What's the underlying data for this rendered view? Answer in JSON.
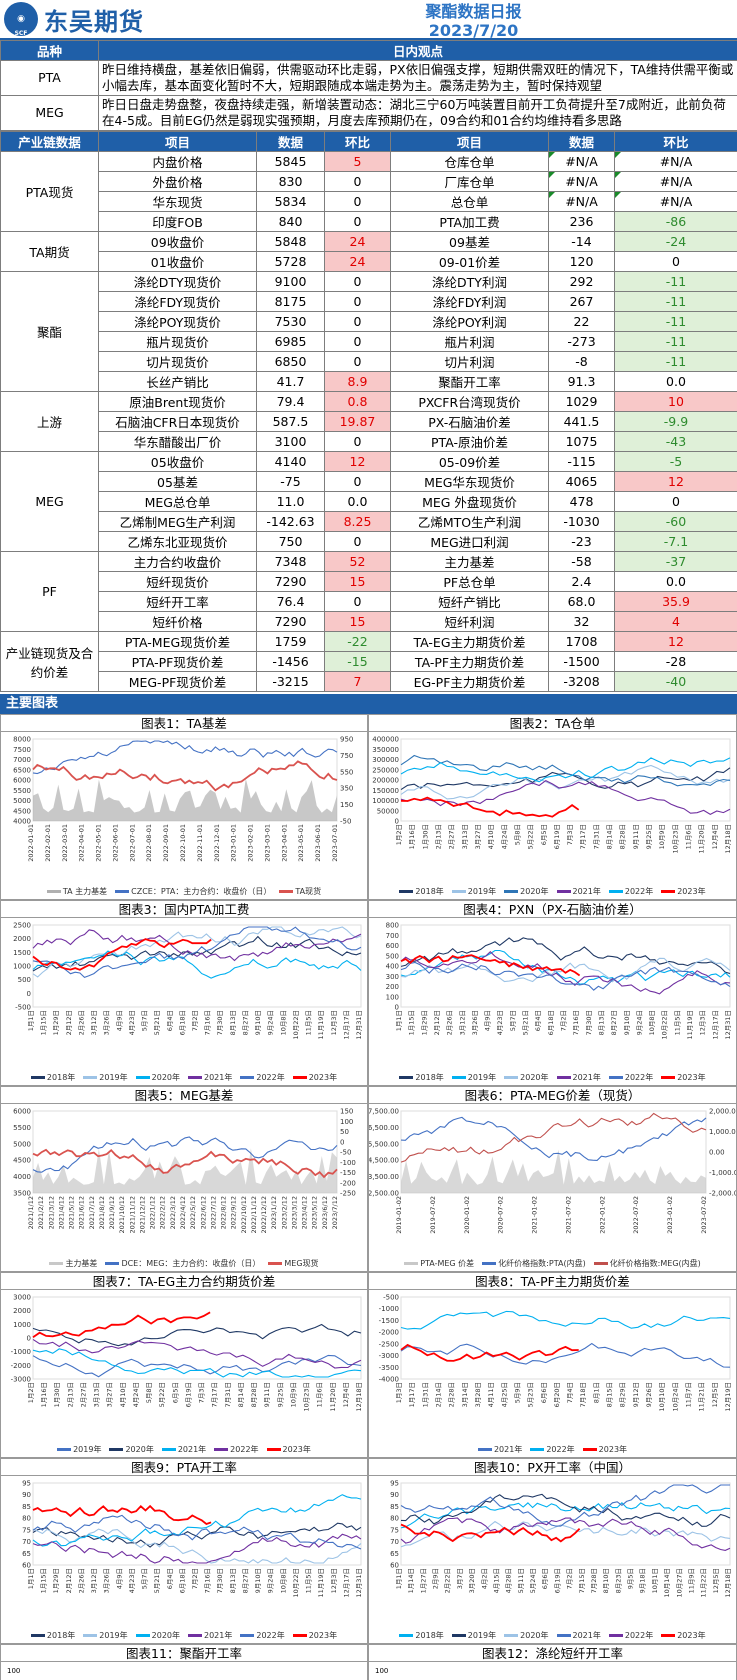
{
  "header": {
    "logo_mark": "SCF",
    "logo_name": "东吴期货",
    "title": "聚酯数据日报",
    "date": "2023/7/20"
  },
  "view": {
    "col1": "品种",
    "col2": "日内观点",
    "rows": [
      {
        "cat": "PTA",
        "text": "昨日维持横盘，基差依旧偏弱，供需驱动环比走弱，PX依旧偏强支撑，短期供需双旺的情况下，TA维持供需平衡或小幅去库，基本面变化暂时不大，短期跟随成本端走势为主。震荡走势为主，暂时保持观望"
      },
      {
        "cat": "MEG",
        "text": "昨日日盘走势盘整，夜盘持续走强，新增装置动态：湖北三宁60万吨装置目前开工负荷提升至7成附近，此前负荷在4-5成。目前EG仍然是弱现实强预期，月度去库预期仍在，09合约和01合约均维持看多思路"
      }
    ]
  },
  "table": {
    "headers": [
      "产业链数据",
      "项目",
      "数据",
      "环比",
      "项目",
      "数据",
      "环比"
    ],
    "groups": [
      {
        "name": "PTA现货",
        "rows": [
          [
            "内盘价格",
            "5845",
            "5",
            "pos",
            "仓库仓单",
            "#N/A",
            "#N/A",
            "na"
          ],
          [
            "外盘价格",
            "830",
            "0",
            "",
            "厂库仓单",
            "#N/A",
            "#N/A",
            "na"
          ],
          [
            "华东现货",
            "5834",
            "0",
            "",
            "总仓单",
            "#N/A",
            "#N/A",
            "na"
          ],
          [
            "印度FOB",
            "840",
            "0",
            "",
            "PTA加工费",
            "236",
            "-86",
            "neg"
          ]
        ]
      },
      {
        "name": "TA期货",
        "rows": [
          [
            "09收盘价",
            "5848",
            "24",
            "pos",
            "09基差",
            "-14",
            "-24",
            "neg"
          ],
          [
            "01收盘价",
            "5728",
            "24",
            "pos",
            "09-01价差",
            "120",
            "0",
            ""
          ]
        ]
      },
      {
        "name": "聚酯",
        "rows": [
          [
            "涤纶DTY现货价",
            "9100",
            "0",
            "",
            "涤纶DTY利润",
            "292",
            "-11",
            "neg"
          ],
          [
            "涤纶FDY现货价",
            "8175",
            "0",
            "",
            "涤纶FDY利润",
            "267",
            "-11",
            "neg"
          ],
          [
            "涤纶POY现货价",
            "7530",
            "0",
            "",
            "涤纶POY利润",
            "22",
            "-11",
            "neg"
          ],
          [
            "瓶片现货价",
            "6985",
            "0",
            "",
            "瓶片利润",
            "-273",
            "-11",
            "neg"
          ],
          [
            "切片现货价",
            "6850",
            "0",
            "",
            "切片利润",
            "-8",
            "-11",
            "neg"
          ],
          [
            "长丝产销比",
            "41.7",
            "8.9",
            "pos",
            "聚酯开工率",
            "91.3",
            "0.0",
            ""
          ]
        ]
      },
      {
        "name": "上游",
        "rows": [
          [
            "原油Brent现货价",
            "79.4",
            "0.8",
            "pos",
            "PXCFR台湾现货价",
            "1029",
            "10",
            "pos"
          ],
          [
            "石脑油CFR日本现货价",
            "587.5",
            "19.87",
            "pos",
            "PX-石脑油价差",
            "441.5",
            "-9.9",
            "neg"
          ],
          [
            "华东醋酸出厂价",
            "3100",
            "0",
            "",
            "PTA-原油价差",
            "1075",
            "-43",
            "neg"
          ]
        ]
      },
      {
        "name": "MEG",
        "rows": [
          [
            "05收盘价",
            "4140",
            "12",
            "pos",
            "05-09价差",
            "-115",
            "-5",
            "neg"
          ],
          [
            "05基差",
            "-75",
            "0",
            "",
            "MEG华东现货价",
            "4065",
            "12",
            "pos"
          ],
          [
            "MEG总仓单",
            "11.0",
            "0.0",
            "",
            "MEG 外盘现货价",
            "478",
            "0",
            ""
          ],
          [
            "乙烯制MEG生产利润",
            "-142.63",
            "8.25",
            "pos",
            "乙烯MTO生产利润",
            "-1030",
            "-60",
            "neg"
          ],
          [
            "乙烯东北亚现货价",
            "750",
            "0",
            "",
            "MEG进口利润",
            "-23",
            "-7.1",
            "neg"
          ]
        ]
      },
      {
        "name": "PF",
        "rows": [
          [
            "主力合约收盘价",
            "7348",
            "52",
            "pos",
            "主力基差",
            "-58",
            "-37",
            "neg"
          ],
          [
            "短纤现货价",
            "7290",
            "15",
            "pos",
            "PF总仓单",
            "2.4",
            "0.0",
            ""
          ],
          [
            "短纤开工率",
            "76.4",
            "0",
            "",
            "短纤产销比",
            "68.0",
            "35.9",
            "pos"
          ],
          [
            "短纤价格",
            "7290",
            "15",
            "pos",
            "短纤利润",
            "32",
            "4",
            "pos"
          ]
        ]
      },
      {
        "name": "产业链现货及合约价差",
        "rows": [
          [
            "PTA-MEG现货价差",
            "1759",
            "-22",
            "neg",
            "TA-EG主力期货价差",
            "1708",
            "12",
            "pos"
          ],
          [
            "PTA-PF现货价差",
            "-1456",
            "-15",
            "neg",
            "TA-PF主力期货价差",
            "-1500",
            "-28",
            ""
          ],
          [
            "MEG-PF现货价差",
            "-3215",
            "7",
            "pos",
            "EG-PF主力期货价差",
            "-3208",
            "-40",
            "neg"
          ]
        ]
      }
    ]
  },
  "section": "主要图表",
  "charts": [
    {
      "title": "图表1：TA基差",
      "legend": [
        "TA 主力基差",
        "CZCE：PTA：主力合约：收盘价（日）",
        "TA现货"
      ],
      "colors": [
        "#b0b0b0",
        "#4472c4",
        "#d9534f"
      ]
    },
    {
      "title": "图表2：TA仓单",
      "legend": [
        "2018年",
        "2019年",
        "2020年",
        "2021年",
        "2022年",
        "2023年"
      ],
      "colors": [
        "#1f3864",
        "#9dc3e6",
        "#2e75b6",
        "#7030a0",
        "#00b0f0",
        "#ff0000"
      ]
    },
    {
      "title": "图表3：国内PTA加工费",
      "legend": [
        "2018年",
        "2019年",
        "2020年",
        "2021年",
        "2022年",
        "2023年"
      ],
      "colors": [
        "#1f3864",
        "#9dc3e6",
        "#00b0f0",
        "#7030a0",
        "#4472c4",
        "#ff0000"
      ]
    },
    {
      "title": "图表4：PXN（PX-石脑油价差）",
      "legend": [
        "2018年",
        "2019年",
        "2020年",
        "2021年",
        "2022年",
        "2023年"
      ],
      "colors": [
        "#1f3864",
        "#00b0f0",
        "#9dc3e6",
        "#7030a0",
        "#4472c4",
        "#ff0000"
      ]
    },
    {
      "title": "图表5：MEG基差",
      "legend": [
        "主力基差",
        "DCE：MEG：主力合约：收盘价（日）",
        "MEG现货"
      ],
      "colors": [
        "#c8c8c8",
        "#4472c4",
        "#d9534f"
      ]
    },
    {
      "title": "图表6：PTA-MEG价差（现货）",
      "legend": [
        "PTA-MEG 价差",
        "化纤价格指数:PTA(内盘)",
        "化纤价格指数:MEG(内盘)"
      ],
      "colors": [
        "#c8c8c8",
        "#4472c4",
        "#c0504d"
      ]
    },
    {
      "title": "图表7：TA-EG主力合约期货价差",
      "legend": [
        "2019年",
        "2020年",
        "2021年",
        "2022年",
        "2023年"
      ],
      "colors": [
        "#4472c4",
        "#1f3864",
        "#00b0f0",
        "#7030a0",
        "#ff0000"
      ]
    },
    {
      "title": "图表8：TA-PF主力期货价差",
      "legend": [
        "2021年",
        "2022年",
        "2023年"
      ],
      "colors": [
        "#4472c4",
        "#00b0f0",
        "#ff0000"
      ]
    },
    {
      "title": "图表9：PTA开工率",
      "legend": [
        "2018年",
        "2019年",
        "2020年",
        "2021年",
        "2022年",
        "2023年"
      ],
      "colors": [
        "#1f3864",
        "#9dc3e6",
        "#00b0f0",
        "#7030a0",
        "#4472c4",
        "#ff0000"
      ]
    },
    {
      "title": "图表10：PX开工率（中国）",
      "legend": [
        "2018年",
        "2019年",
        "2020年",
        "2021年",
        "2022年",
        "2023年"
      ],
      "colors": [
        "#00b0f0",
        "#1f3864",
        "#9dc3e6",
        "#4472c4",
        "#7030a0",
        "#ff0000"
      ]
    },
    {
      "title": "图表11：聚酯开工率",
      "legend": [],
      "colors": []
    },
    {
      "title": "图表12：涤纶短纤开工率",
      "legend": [],
      "colors": []
    }
  ],
  "axes": [
    {
      "left": [
        "8000",
        "7500",
        "7000",
        "6500",
        "6000",
        "5500",
        "5000",
        "4500",
        "4000"
      ],
      "right": [
        "950",
        "750",
        "550",
        "350",
        "150",
        "-50"
      ],
      "x": [
        "2022-01-01",
        "2022-02-01",
        "2022-03-01",
        "2022-04-01",
        "2022-05-01",
        "2022-06-01",
        "2022-07-01",
        "2022-08-01",
        "2022-09-01",
        "2022-10-01",
        "2022-11-01",
        "2022-12-01",
        "2023-01-01",
        "2023-02-01",
        "2023-03-01",
        "2023-04-01",
        "2023-05-01",
        "2023-06-01",
        "2023-07-01"
      ]
    },
    {
      "left": [
        "400000",
        "350000",
        "300000",
        "250000",
        "200000",
        "150000",
        "100000",
        "50000",
        "0"
      ],
      "right": [],
      "x": [
        "1月2日",
        "1月16日",
        "1月30日",
        "2月13日",
        "2月27日",
        "3月13日",
        "3月27日",
        "4月10日",
        "4月24日",
        "5月8日",
        "5月22日",
        "6月5日",
        "6月19日",
        "7月3日",
        "7月17日",
        "7月31日",
        "8月14日",
        "8月28日",
        "9月11日",
        "9月25日",
        "10月9日",
        "10月23日",
        "11月6日",
        "11月20日",
        "12月4日",
        "12月18日"
      ]
    },
    {
      "left": [
        "2500",
        "2000",
        "1500",
        "1000",
        "500",
        "0",
        "-500"
      ],
      "right": [],
      "x": [
        "1月1日",
        "1月15日",
        "1月29日",
        "2月12日",
        "2月26日",
        "3月12日",
        "3月26日",
        "4月9日",
        "4月23日",
        "5月7日",
        "5月21日",
        "6月4日",
        "6月18日",
        "7月2日",
        "7月16日",
        "7月30日",
        "8月13日",
        "8月27日",
        "9月10日",
        "9月24日",
        "10月8日",
        "10月22日",
        "11月5日",
        "11月19日",
        "12月3日",
        "12月17日",
        "12月31日"
      ]
    },
    {
      "left": [
        "800",
        "700",
        "600",
        "500",
        "400",
        "300",
        "200",
        "100",
        "0"
      ],
      "right": [],
      "x": [
        "1月1日",
        "1月15日",
        "1月29日",
        "2月12日",
        "2月26日",
        "3月12日",
        "3月26日",
        "4月9日",
        "4月23日",
        "5月7日",
        "5月21日",
        "6月4日",
        "6月18日",
        "7月2日",
        "7月16日",
        "7月30日",
        "8月13日",
        "8月27日",
        "9月10日",
        "9月24日",
        "10月8日",
        "10月22日",
        "11月5日",
        "11月19日",
        "12月3日",
        "12月17日",
        "12月31日"
      ]
    },
    {
      "left": [
        "6000",
        "5500",
        "5000",
        "4500",
        "4000",
        "3500"
      ],
      "right": [
        "150",
        "100",
        "50",
        "0",
        "-50",
        "-100",
        "-150",
        "-200",
        "-250"
      ],
      "x": [
        "2021/1/12",
        "2021/2/12",
        "2021/3/12",
        "2021/4/12",
        "2021/5/12",
        "2021/6/12",
        "2021/7/12",
        "2021/8/12",
        "2021/9/12",
        "2021/10/12",
        "2021/11/12",
        "2021/12/12",
        "2022/1/12",
        "2022/2/12",
        "2022/3/12",
        "2022/4/12",
        "2022/5/12",
        "2022/6/12",
        "2022/7/12",
        "2022/8/12",
        "2022/9/12",
        "2022/10/12",
        "2022/11/12",
        "2022/12/12",
        "2023/1/12",
        "2023/2/12",
        "2023/3/12",
        "2023/4/12",
        "2023/5/12",
        "2023/6/12",
        "2023/7/12"
      ]
    },
    {
      "left": [
        "7,500.00",
        "6,500.00",
        "5,500.00",
        "4,500.00",
        "3,500.00",
        "2,500.00"
      ],
      "right": [
        "2,000.00",
        "1,000.00",
        "0.00",
        "-1,000.00",
        "-2,000.00"
      ],
      "x": [
        "2019-01-02",
        "2019-07-02",
        "2020-01-02",
        "2020-07-02",
        "2021-01-02",
        "2021-07-02",
        "2022-01-02",
        "2022-07-02",
        "2023-01-02",
        "2023-07-02"
      ]
    },
    {
      "left": [
        "3000",
        "2000",
        "1000",
        "0",
        "-1000",
        "-2000",
        "-3000"
      ],
      "right": [],
      "x": [
        "1月2日",
        "1月16日",
        "1月30日",
        "2月13日",
        "2月27日",
        "3月13日",
        "3月27日",
        "4月10日",
        "4月24日",
        "5月8日",
        "5月22日",
        "6月5日",
        "6月19日",
        "7月3日",
        "7月17日",
        "7月31日",
        "8月14日",
        "8月28日",
        "9月11日",
        "9月25日",
        "10月9日",
        "10月23日",
        "11月6日",
        "11月20日",
        "12月4日",
        "12月18日"
      ]
    },
    {
      "left": [
        "-500",
        "-1000",
        "-1500",
        "-2000",
        "-2500",
        "-3000",
        "-3500",
        "-4000"
      ],
      "right": [],
      "x": [
        "1月3日",
        "1月17日",
        "1月31日",
        "2月14日",
        "2月28日",
        "3月14日",
        "3月28日",
        "4月11日",
        "4月25日",
        "5月9日",
        "5月23日",
        "6月6日",
        "6月20日",
        "7月4日",
        "7月18日",
        "8月1日",
        "8月15日",
        "8月29日",
        "9月12日",
        "9月26日",
        "10月10日",
        "10月24日",
        "11月7日",
        "11月21日",
        "12月5日",
        "12月19日"
      ]
    },
    {
      "left": [
        "95",
        "90",
        "85",
        "80",
        "75",
        "70",
        "65",
        "60"
      ],
      "right": [],
      "x": [
        "1月1日",
        "1月15日",
        "1月29日",
        "2月12日",
        "2月26日",
        "3月12日",
        "3月26日",
        "4月9日",
        "4月23日",
        "5月7日",
        "5月21日",
        "6月4日",
        "6月18日",
        "7月2日",
        "7月16日",
        "7月30日",
        "8月13日",
        "8月27日",
        "9月10日",
        "9月24日",
        "10月8日",
        "10月22日",
        "11月5日",
        "11月19日",
        "12月3日",
        "12月17日",
        "12月31日"
      ]
    },
    {
      "left": [
        "95",
        "90",
        "85",
        "80",
        "75",
        "70",
        "65",
        "60"
      ],
      "right": [],
      "x": [
        "1月1日",
        "1月14日",
        "1月27日",
        "2月9日",
        "2月22日",
        "3月7日",
        "3月20日",
        "4月2日",
        "4月15日",
        "4月28日",
        "5月11日",
        "5月24日",
        "6月6日",
        "6月19日",
        "7月2日",
        "7月15日",
        "7月28日",
        "8月10日",
        "8月23日",
        "9月5日",
        "9月18日",
        "10月1日",
        "10月14日",
        "10月27日",
        "11月9日",
        "11月22日",
        "12月5日",
        "12月18日"
      ]
    },
    {
      "left": [
        "100"
      ],
      "right": [],
      "x": []
    },
    {
      "left": [
        "100"
      ],
      "right": [],
      "x": []
    }
  ]
}
